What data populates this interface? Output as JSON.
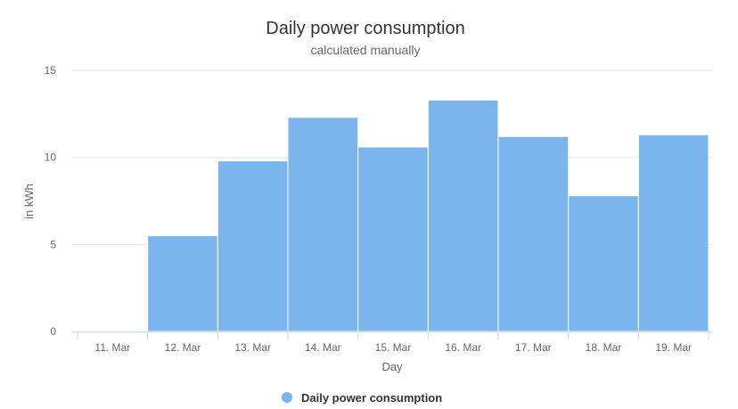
{
  "chart_data": {
    "type": "bar",
    "title": "Daily power consumption",
    "subtitle": "calculated manually",
    "xlabel": "Day",
    "ylabel": "in kWh",
    "categories": [
      "11. Mar",
      "12. Mar",
      "13. Mar",
      "14. Mar",
      "15. Mar",
      "16. Mar",
      "17. Mar",
      "18. Mar",
      "19. Mar"
    ],
    "series": [
      {
        "name": "Daily power consumption",
        "values": [
          0,
          5.5,
          9.8,
          12.3,
          10.6,
          13.3,
          11.2,
          7.8,
          11.3
        ],
        "color": "#7cb5ec"
      }
    ],
    "ylim": [
      0,
      15
    ],
    "yticks": [
      "0",
      "5",
      "10",
      "15"
    ],
    "grid": true,
    "legend": "bottom-center"
  }
}
